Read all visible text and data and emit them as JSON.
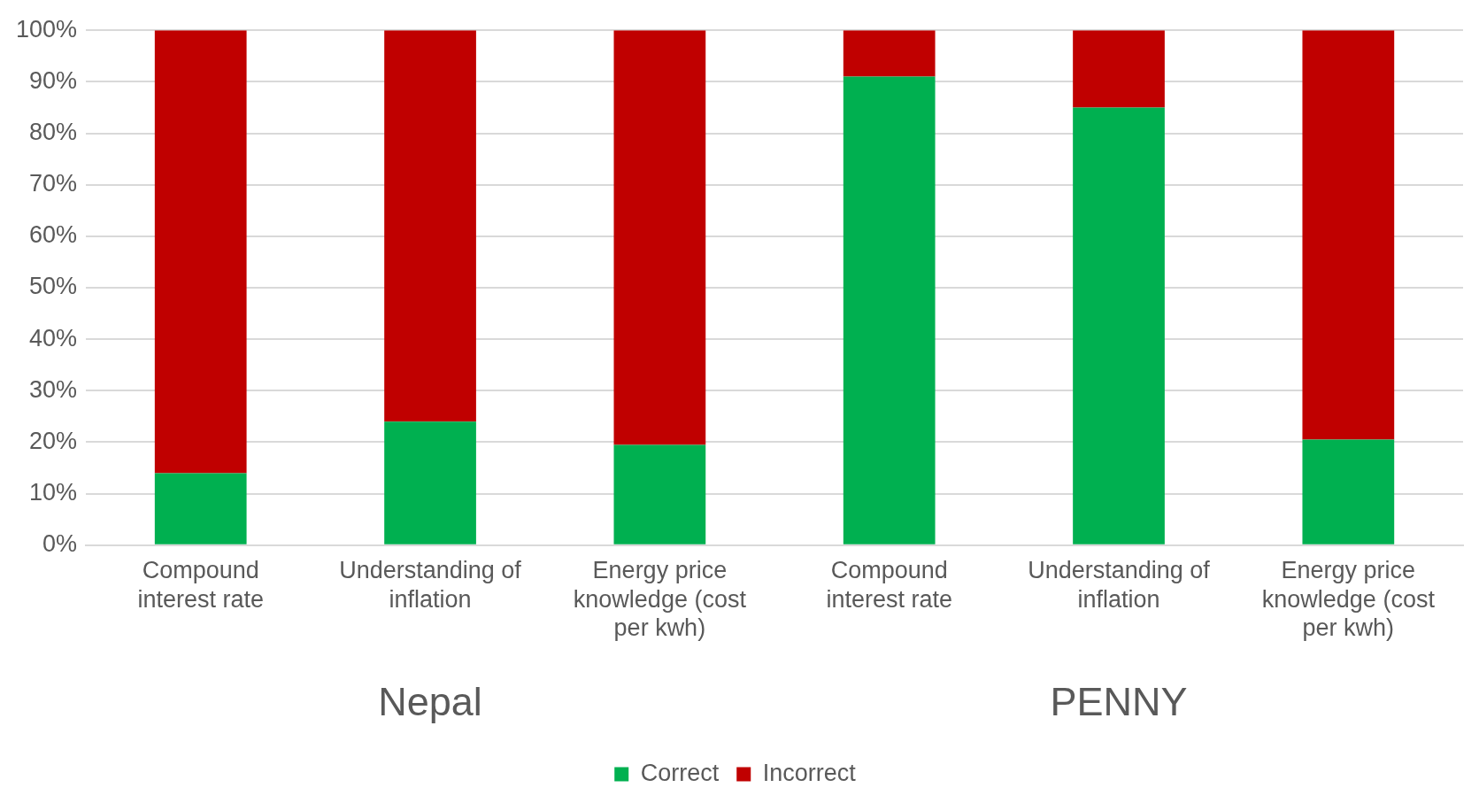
{
  "chart_data": {
    "type": "bar",
    "stacked": true,
    "categories": [
      "Compound interest rate",
      "Understanding of inflation",
      "Energy price knowledge (cost per kwh)",
      "Compound interest rate",
      "Understanding of inflation",
      "Energy price knowledge (cost per kwh)"
    ],
    "series": [
      {
        "name": "Correct",
        "color": "#00b050",
        "values": [
          14,
          24,
          19.5,
          91,
          85,
          20.5
        ]
      },
      {
        "name": "Incorrect",
        "color": "#c00000",
        "values": [
          86,
          76,
          80.5,
          9,
          15,
          79.5
        ]
      }
    ],
    "ylim": [
      0,
      100
    ],
    "yticks": [
      {
        "value": 0,
        "label": "0%"
      },
      {
        "value": 10,
        "label": "10%"
      },
      {
        "value": 20,
        "label": "20%"
      },
      {
        "value": 30,
        "label": "30%"
      },
      {
        "value": 40,
        "label": "40%"
      },
      {
        "value": 50,
        "label": "50%"
      },
      {
        "value": 60,
        "label": "60%"
      },
      {
        "value": 70,
        "label": "70%"
      },
      {
        "value": 80,
        "label": "80%"
      },
      {
        "value": 90,
        "label": "90%"
      },
      {
        "value": 100,
        "label": "100%"
      }
    ],
    "annotations": [
      "Nepal",
      "PENNY"
    ],
    "grid": "y",
    "legend": "bottom"
  }
}
